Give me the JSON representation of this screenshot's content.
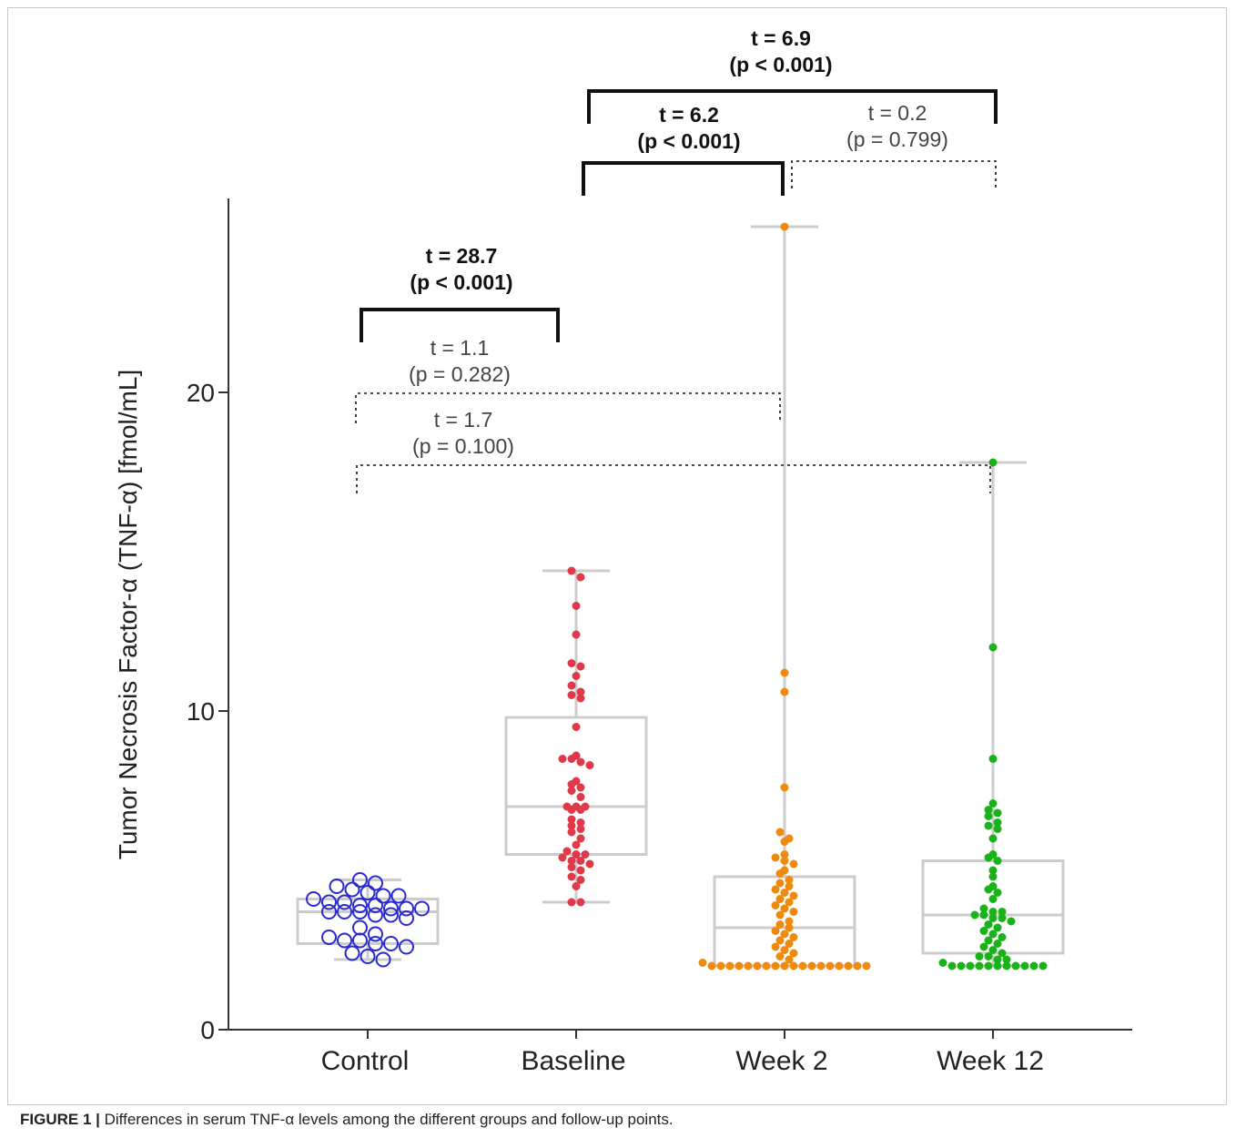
{
  "figure": {
    "label": "FIGURE 1 |",
    "caption": "Differences in serum TNF-α levels among the different groups and follow-up points."
  },
  "chart_data": {
    "type": "box-scatter",
    "ylabel": "Tumor Necrosis Factor-α (TNF-α) [fmol/mL]",
    "ylim": [
      0,
      26
    ],
    "yticks": [
      "0",
      "10",
      "20"
    ],
    "categories": [
      "Control",
      "Baseline",
      "Week 2",
      "Week 12"
    ],
    "colors": {
      "Control": "#2a2ad0",
      "Baseline": "#e0394a",
      "Week 2": "#f08a0c",
      "Week 12": "#19b319",
      "box": "#cccccc",
      "axis": "#333333"
    },
    "boxes": [
      {
        "category": "Control",
        "whisker_low": 2.2,
        "q1": 2.7,
        "median": 3.7,
        "q3": 4.1,
        "whisker_high": 4.7
      },
      {
        "category": "Baseline",
        "whisker_low": 4.0,
        "q1": 5.5,
        "median": 7.0,
        "q3": 9.8,
        "whisker_high": 14.4
      },
      {
        "category": "Week 2",
        "whisker_low": 2.0,
        "q1": 2.0,
        "median": 3.2,
        "q3": 4.8,
        "whisker_high": 25.2
      },
      {
        "category": "Week 12",
        "whisker_low": 2.0,
        "q1": 2.4,
        "median": 3.6,
        "q3": 5.3,
        "whisker_high": 17.8
      }
    ],
    "points": {
      "Control": [
        4.7,
        4.6,
        4.5,
        4.4,
        4.3,
        4.2,
        4.2,
        4.1,
        4.0,
        4.0,
        3.9,
        3.9,
        3.8,
        3.8,
        3.8,
        3.7,
        3.7,
        3.7,
        3.6,
        3.6,
        3.5,
        3.2,
        3.0,
        2.9,
        2.8,
        2.8,
        2.7,
        2.7,
        2.6,
        2.4,
        2.3,
        2.2
      ],
      "Baseline": [
        14.4,
        14.2,
        13.3,
        12.4,
        11.5,
        11.4,
        11.1,
        10.8,
        10.6,
        10.5,
        10.4,
        9.5,
        8.6,
        8.5,
        8.5,
        8.4,
        8.3,
        7.8,
        7.7,
        7.6,
        7.5,
        7.3,
        7.0,
        7.0,
        7.0,
        6.9,
        6.9,
        6.6,
        6.5,
        6.4,
        6.3,
        6.2,
        6.0,
        5.8,
        5.6,
        5.5,
        5.5,
        5.4,
        5.3,
        5.3,
        5.2,
        5.1,
        5.0,
        4.8,
        4.7,
        4.5,
        4.0,
        4.0
      ],
      "Week 2": [
        25.2,
        11.2,
        10.6,
        7.6,
        6.2,
        6.0,
        5.9,
        5.5,
        5.4,
        5.3,
        5.2,
        5.0,
        4.9,
        4.7,
        4.6,
        4.5,
        4.4,
        4.3,
        4.2,
        4.1,
        4.0,
        3.9,
        3.8,
        3.7,
        3.6,
        3.4,
        3.3,
        3.2,
        3.1,
        3.0,
        2.9,
        2.8,
        2.7,
        2.6,
        2.5,
        2.4,
        2.3,
        2.2,
        2.1,
        2.0,
        2.0,
        2.0,
        2.0,
        2.0,
        2.0,
        2.0,
        2.0,
        2.0,
        2.0,
        2.0,
        2.0,
        2.0,
        2.0,
        2.0,
        2.0,
        2.0,
        2.0
      ],
      "Week 12": [
        17.8,
        12.0,
        8.5,
        7.1,
        6.9,
        6.8,
        6.7,
        6.5,
        6.4,
        6.3,
        6.0,
        5.5,
        5.4,
        5.3,
        5.0,
        4.8,
        4.5,
        4.4,
        4.3,
        4.1,
        3.8,
        3.7,
        3.7,
        3.6,
        3.6,
        3.5,
        3.5,
        3.4,
        3.3,
        3.2,
        3.1,
        3.0,
        2.9,
        2.8,
        2.7,
        2.6,
        2.5,
        2.4,
        2.3,
        2.3,
        2.2,
        2.2,
        2.1,
        2.0,
        2.0,
        2.0,
        2.0,
        2.0,
        2.0,
        2.0,
        2.0,
        2.0,
        2.0,
        2.0
      ]
    },
    "comparisons": [
      {
        "from": "Control",
        "to": "Baseline",
        "t": "t = 28.7",
        "p": "(p < 0.001)",
        "bold": true,
        "style": "solid"
      },
      {
        "from": "Control",
        "to": "Week 2",
        "t": "t = 1.1",
        "p": "(p = 0.282)",
        "bold": false,
        "style": "dotted"
      },
      {
        "from": "Control",
        "to": "Week 12",
        "t": "t = 1.7",
        "p": "(p = 0.100)",
        "bold": false,
        "style": "dotted"
      },
      {
        "from": "Baseline",
        "to": "Week 2",
        "t": "t = 6.2",
        "p": "(p < 0.001)",
        "bold": true,
        "style": "solid"
      },
      {
        "from": "Week 2",
        "to": "Week 12",
        "t": "t = 0.2",
        "p": "(p = 0.799)",
        "bold": false,
        "style": "dotted"
      },
      {
        "from": "Baseline",
        "to": "Week 12",
        "t": "t = 6.9",
        "p": "(p < 0.001)",
        "bold": true,
        "style": "solid"
      }
    ]
  }
}
